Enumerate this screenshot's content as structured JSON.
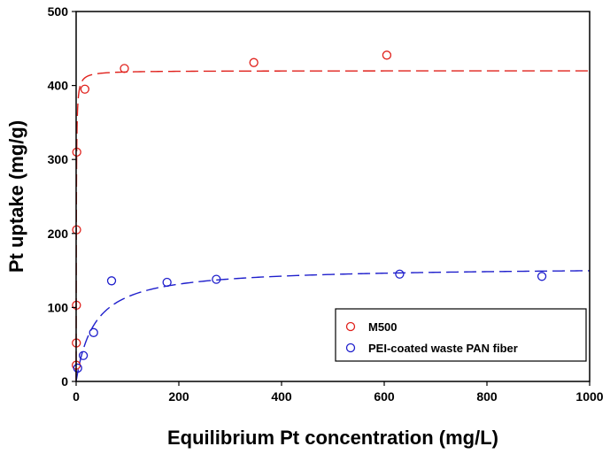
{
  "chart_data": {
    "type": "scatter",
    "title": "",
    "xlabel": "Equilibrium Pt concentration (mg/L)",
    "ylabel": "Pt uptake (mg/g)",
    "xlim": [
      0,
      1000
    ],
    "ylim": [
      0,
      500
    ],
    "x_ticks": [
      "0",
      "200",
      "400",
      "600",
      "800",
      "1000"
    ],
    "y_ticks": [
      "0",
      "100",
      "200",
      "300",
      "400",
      "500"
    ],
    "grid": false,
    "legend_position": "bottom-right",
    "series": [
      {
        "name": "M500",
        "color": "#e0201b",
        "marker": "open-circle",
        "points": [
          {
            "x": 0.2,
            "y": 22
          },
          {
            "x": 0.4,
            "y": 52
          },
          {
            "x": 0.6,
            "y": 103
          },
          {
            "x": 0.9,
            "y": 205
          },
          {
            "x": 1.2,
            "y": 310
          },
          {
            "x": 17,
            "y": 395
          },
          {
            "x": 94,
            "y": 423
          },
          {
            "x": 346,
            "y": 431
          },
          {
            "x": 605,
            "y": 441
          }
        ],
        "fit": {
          "model": "langmuir",
          "qmax": 420,
          "b": 2.5,
          "line_style": "dashed"
        }
      },
      {
        "name": "PEI-coated waste PAN fiber",
        "color": "#1f1fcc",
        "marker": "open-circle",
        "points": [
          {
            "x": 3,
            "y": 18
          },
          {
            "x": 14,
            "y": 35
          },
          {
            "x": 34,
            "y": 66
          },
          {
            "x": 69,
            "y": 136
          },
          {
            "x": 177,
            "y": 134
          },
          {
            "x": 273,
            "y": 138
          },
          {
            "x": 630,
            "y": 145
          },
          {
            "x": 907,
            "y": 142
          }
        ],
        "fit": {
          "model": "langmuir",
          "qmax": 155,
          "b": 0.028,
          "line_style": "dashed"
        }
      }
    ]
  }
}
